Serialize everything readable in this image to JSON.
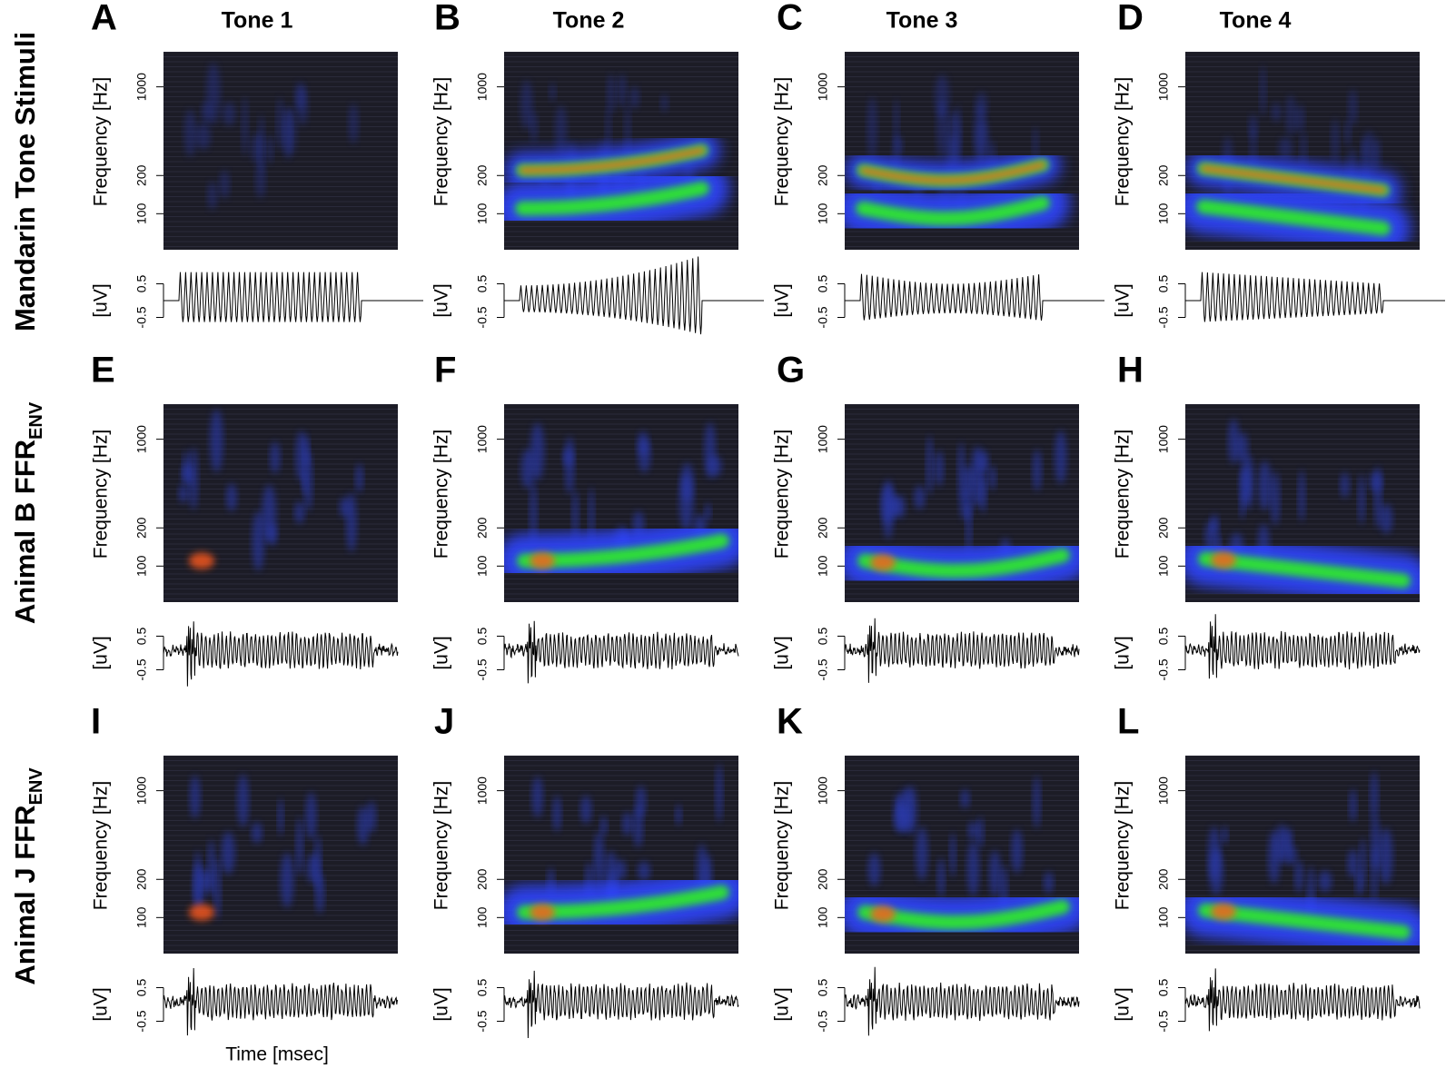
{
  "rows": [
    {
      "label": "Mandarin Tone Stimuli"
    },
    {
      "label": "Animal B FFR",
      "subscript": "ENV"
    },
    {
      "label": "Animal J FFR",
      "subscript": "ENV"
    }
  ],
  "columns": [
    "Tone 1",
    "Tone 2",
    "Tone 3",
    "Tone 4"
  ],
  "panels": [
    "A",
    "B",
    "C",
    "D",
    "E",
    "F",
    "G",
    "H",
    "I",
    "J",
    "K",
    "L"
  ],
  "axes": {
    "frequency_label": "Frequency [Hz]",
    "frequency_ticks": [
      100,
      200,
      1000
    ],
    "frequency_range": [
      52,
      1890
    ],
    "log_frequency": true,
    "amplitude_label": "[uV]",
    "amplitude_ticks": [
      -0.5,
      0.5
    ],
    "time_label": "Time [msec]"
  }
}
